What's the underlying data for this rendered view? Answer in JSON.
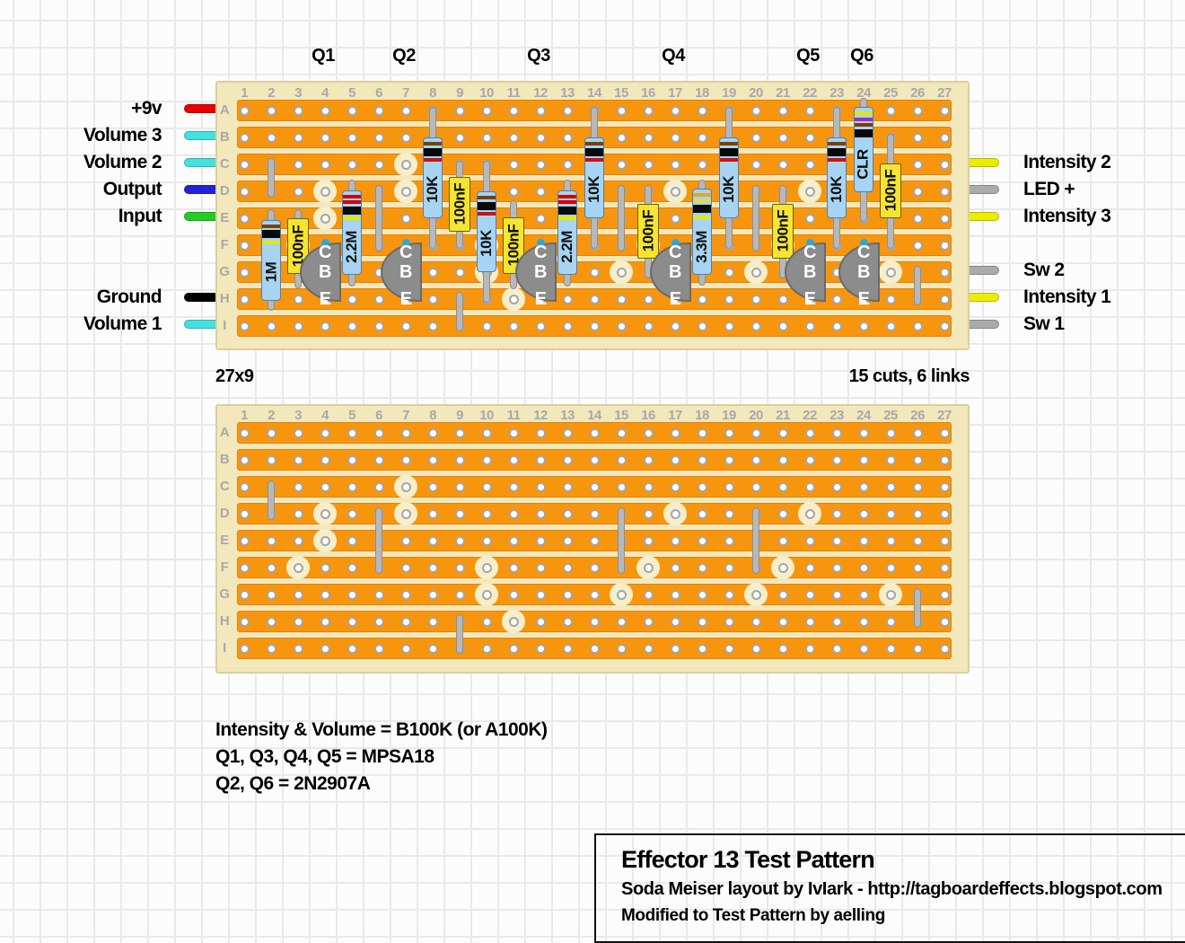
{
  "title_block": {
    "title": "Effector 13 Test Pattern",
    "subtitle": "Soda Meiser layout by IvIark - http://tagboardeffects.blogspot.com",
    "modified": "Modified to Test Pattern by aelling"
  },
  "notes": [
    "Intensity & Volume = B100K (or A100K)",
    "Q1, Q3, Q4, Q5 = MPSA18",
    "Q2, Q6 = 2N2907A"
  ],
  "boards": {
    "cols": 27,
    "rows": 9,
    "size_note": "27x9",
    "cuts_note": "15 cuts, 6 links",
    "col_numbers": [
      "1",
      "2",
      "3",
      "4",
      "5",
      "6",
      "7",
      "8",
      "9",
      "10",
      "11",
      "12",
      "13",
      "14",
      "15",
      "16",
      "17",
      "18",
      "19",
      "20",
      "21",
      "22",
      "23",
      "24",
      "25",
      "26",
      "27"
    ],
    "row_letters": [
      "A",
      "B",
      "C",
      "D",
      "E",
      "F",
      "G",
      "H",
      "I"
    ],
    "cuts": [
      [
        3,
        5
      ],
      [
        4,
        3
      ],
      [
        4,
        4
      ],
      [
        7,
        2
      ],
      [
        7,
        3
      ],
      [
        10,
        5
      ],
      [
        10,
        6
      ],
      [
        11,
        7
      ],
      [
        15,
        6
      ],
      [
        16,
        5
      ],
      [
        17,
        3
      ],
      [
        20,
        6
      ],
      [
        21,
        5
      ],
      [
        22,
        3
      ],
      [
        25,
        6
      ]
    ],
    "links": [
      {
        "col": 2,
        "from": 1.9,
        "to": 3.1
      },
      {
        "col": 6,
        "from": 2.9,
        "to": 5.1
      },
      {
        "col": 9,
        "from": 6.85,
        "to": 8.05
      },
      {
        "col": 15,
        "from": 2.9,
        "to": 5.1
      },
      {
        "col": 20,
        "from": 2.9,
        "to": 5.1
      },
      {
        "col": 26,
        "from": 5.9,
        "to": 7.1
      }
    ]
  },
  "q_labels": [
    {
      "label": "Q1",
      "col": 4
    },
    {
      "label": "Q2",
      "col": 7
    },
    {
      "label": "Q3",
      "col": 12
    },
    {
      "label": "Q4",
      "col": 17
    },
    {
      "label": "Q5",
      "col": 22
    },
    {
      "label": "Q6",
      "col": 24
    }
  ],
  "pins_left": [
    {
      "label": "+9v",
      "row": 0,
      "color": "#E80000"
    },
    {
      "label": "Volume 3",
      "row": 1,
      "color": "#45E0E0"
    },
    {
      "label": "Volume 2",
      "row": 2,
      "color": "#45E0E0"
    },
    {
      "label": "Output",
      "row": 3,
      "color": "#2222DD"
    },
    {
      "label": "Input",
      "row": 4,
      "color": "#22CC22"
    },
    {
      "label": "Ground",
      "row": 7,
      "color": "#000000"
    },
    {
      "label": "Volume 1",
      "row": 8,
      "color": "#45E0E0"
    }
  ],
  "pins_right": [
    {
      "label": "Intensity 2",
      "row": 2,
      "color": "#ECEC00"
    },
    {
      "label": "LED +",
      "row": 3,
      "color": "#ABABAB"
    },
    {
      "label": "Intensity 3",
      "row": 4,
      "color": "#ECEC00"
    },
    {
      "label": "Sw 2",
      "row": 6,
      "color": "#ABABAB"
    },
    {
      "label": "Intensity 1",
      "row": 7,
      "color": "#ECEC00"
    },
    {
      "label": "Sw 1",
      "row": 8,
      "color": "#ABABAB"
    }
  ],
  "resistors": [
    {
      "col": 2,
      "label": "1M",
      "body": [
        4.05,
        7.05
      ],
      "leads": [
        3.8,
        7.3
      ],
      "bands": [
        "#7B3F00",
        "#0A0A0A",
        "#E8E800"
      ],
      "band_heights": [
        4,
        9,
        4
      ]
    },
    {
      "col": 5,
      "label": "2.2M",
      "body": [
        2.95,
        6.1
      ],
      "leads": [
        2.7,
        6.4
      ],
      "bands": [
        "#D40000",
        "#D40000",
        "#0A0A0A",
        "#E8E800"
      ],
      "band_heights": [
        4,
        4,
        9,
        4
      ]
    },
    {
      "col": 8,
      "label": "10K",
      "body": [
        1,
        4
      ],
      "leads": [
        0,
        5
      ],
      "bands": [
        "#7B3F00",
        "#0A0A0A",
        "#CC1111"
      ],
      "band_heights": [
        4,
        9,
        4
      ]
    },
    {
      "col": 10,
      "label": "10K",
      "body": [
        3,
        6
      ],
      "leads": [
        2,
        7
      ],
      "bands": [
        "#7B3F00",
        "#0A0A0A",
        "#CC1111"
      ],
      "band_heights": [
        4,
        9,
        4
      ]
    },
    {
      "col": 13,
      "label": "2.2M",
      "body": [
        2.95,
        6.1
      ],
      "leads": [
        2.7,
        6.4
      ],
      "bands": [
        "#D40000",
        "#D40000",
        "#0A0A0A",
        "#E8E800"
      ],
      "band_heights": [
        4,
        4,
        9,
        4
      ]
    },
    {
      "col": 14,
      "label": "10K",
      "body": [
        1,
        4
      ],
      "leads": [
        0,
        5
      ],
      "bands": [
        "#7B3F00",
        "#0A0A0A",
        "#CC1111"
      ],
      "band_heights": [
        4,
        9,
        4
      ]
    },
    {
      "col": 18,
      "label": "3.3M",
      "body": [
        2.9,
        6.1
      ],
      "leads": [
        2.7,
        6.35
      ],
      "bands": [
        "#E8A818",
        "#E8DC40",
        "#0A0A0A",
        "#E8E800"
      ],
      "band_heights": [
        4,
        4,
        9,
        4
      ]
    },
    {
      "col": 19,
      "label": "10K",
      "body": [
        1,
        4
      ],
      "leads": [
        0,
        5
      ],
      "bands": [
        "#7B3F00",
        "#0A0A0A",
        "#CC1111"
      ],
      "band_heights": [
        4,
        9,
        4
      ]
    },
    {
      "col": 23,
      "label": "10K",
      "body": [
        1,
        4
      ],
      "leads": [
        0,
        5
      ],
      "bands": [
        "#7B3F00",
        "#0A0A0A",
        "#CC1111"
      ],
      "band_heights": [
        4,
        9,
        4
      ]
    },
    {
      "col": 24,
      "label": "CLR",
      "body": [
        -0.12,
        3.05
      ],
      "leads": [
        -0.35,
        4
      ],
      "bands": [
        "#E8E800",
        "#9932B8",
        "#7B3F00",
        "#0A0A0A"
      ],
      "band_heights": [
        4,
        4,
        4,
        9
      ]
    }
  ],
  "capacitors": [
    {
      "col": 3,
      "label": "100nF",
      "body": [
        4,
        6.05
      ],
      "leads": [
        3.8,
        6.45
      ]
    },
    {
      "col": 9,
      "label": "100nF",
      "body": [
        2.45,
        4.5
      ],
      "leads": [
        2,
        5
      ]
    },
    {
      "col": 11,
      "label": "100nF",
      "body": [
        3.95,
        6.05
      ],
      "leads": [
        3.45,
        6.5
      ]
    },
    {
      "col": 16,
      "label": "100nF",
      "body": [
        3.45,
        5.5
      ],
      "leads": [
        2.9,
        6.1
      ]
    },
    {
      "col": 21,
      "label": "100nF",
      "body": [
        3.45,
        5.5
      ],
      "leads": [
        2.9,
        6.1
      ]
    },
    {
      "col": 25,
      "label": "100nF",
      "body": [
        1.95,
        4
      ],
      "leads": [
        1,
        5
      ]
    }
  ],
  "transistors": [
    {
      "col": 4,
      "pins": [
        "C",
        "B",
        "E"
      ]
    },
    {
      "col": 7,
      "pins": [
        "C",
        "B",
        "E"
      ]
    },
    {
      "col": 12,
      "pins": [
        "C",
        "B",
        "E"
      ]
    },
    {
      "col": 17,
      "pins": [
        "C",
        "B",
        "E"
      ]
    },
    {
      "col": 22,
      "pins": [
        "C",
        "B",
        "E"
      ]
    },
    {
      "col": 24,
      "pins": [
        "C",
        "B",
        "E"
      ]
    }
  ],
  "colors": {
    "strip": "#F7950D",
    "strip_border": "#E2820C",
    "board": "#F3E8BC",
    "board_border": "#DCCF9C",
    "cut": "#F7EFCB",
    "lead": "#B8B8B8",
    "lead_border": "#8E8E8E",
    "resistor": "#A6D4F2",
    "resistor_border": "#4F7FAE",
    "capacitor": "#F6E530",
    "capacitor_border": "#6B6200",
    "transistor": "#8C8C8C",
    "transistor_border": "#6A6A6A",
    "pin_dot": "#2AA7DF"
  }
}
